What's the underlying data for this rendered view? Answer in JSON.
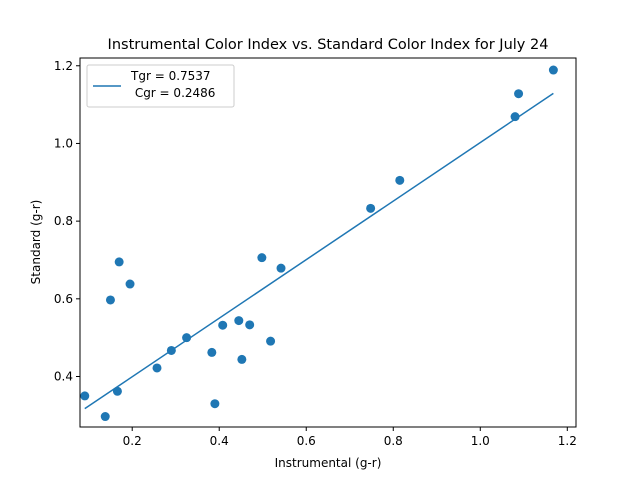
{
  "chart_data": {
    "type": "scatter",
    "title": "Instrumental Color Index vs. Standard Color Index for July 24",
    "xlabel": "Instrumental (g-r)",
    "ylabel": "Standard (g-r)",
    "xlim": [
      0.08,
      1.22
    ],
    "ylim": [
      0.27,
      1.22
    ],
    "xticks": [
      0.2,
      0.4,
      0.6,
      0.8,
      1.0,
      1.2
    ],
    "xtick_labels": [
      "0.2",
      "0.4",
      "0.6",
      "0.8",
      "1.0",
      "1.2"
    ],
    "yticks": [
      0.4,
      0.6,
      0.8,
      1.0,
      1.2
    ],
    "ytick_labels": [
      "0.4",
      "0.6",
      "0.8",
      "1.0",
      "1.2"
    ],
    "grid": false,
    "legend": {
      "placement": "top-left",
      "line1": "Tgr = 0.7537",
      "line2": " Cgr = 0.2486"
    },
    "series": [
      {
        "kind": "points",
        "color": "#1f77b4",
        "x": [
          0.091,
          0.138,
          0.15,
          0.166,
          0.17,
          0.195,
          0.257,
          0.29,
          0.325,
          0.383,
          0.39,
          0.408,
          0.445,
          0.452,
          0.47,
          0.498,
          0.518,
          0.542,
          0.748,
          0.815,
          1.08,
          1.088,
          1.168
        ],
        "y": [
          0.35,
          0.297,
          0.597,
          0.362,
          0.695,
          0.638,
          0.422,
          0.467,
          0.5,
          0.462,
          0.33,
          0.532,
          0.544,
          0.444,
          0.533,
          0.706,
          0.491,
          0.679,
          0.833,
          0.905,
          1.069,
          1.128,
          1.189
        ]
      },
      {
        "kind": "fit-line",
        "color": "#1f77b4",
        "slope": 0.7537,
        "intercept": 0.2486
      }
    ]
  }
}
